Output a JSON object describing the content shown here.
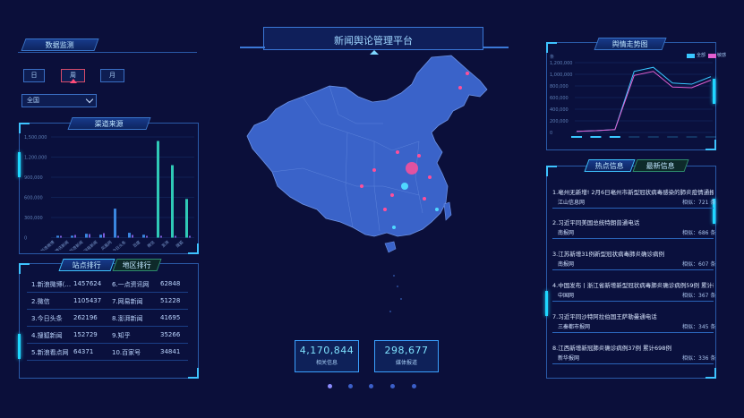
{
  "header": {
    "title": "新闻舆论管理平台"
  },
  "left": {
    "monitor_title": "数据监测",
    "period_buttons": [
      "日",
      "周",
      "月"
    ],
    "region_select": "全国",
    "source_title": "渠道来源",
    "source_chart": {
      "yticks": [
        "1,500,000",
        "1,200,000",
        "900,000",
        "600,000",
        "300,000",
        "0"
      ],
      "categories": [
        "新浪微博",
        "腾讯新闻",
        "新浪新闻",
        "网易新闻",
        "凤凰网",
        "今日头条",
        "百度",
        "微信",
        "澎湃",
        "搜狐"
      ]
    },
    "rank_tabs": [
      "站点排行",
      "地区排行"
    ],
    "rank_rows": [
      {
        "l": "1.新浪微博(...",
        "lv": "1457624",
        "r": "6.一点资讯网",
        "rv": "62848"
      },
      {
        "l": "2.微信",
        "lv": "1105437",
        "r": "7.网易新闻",
        "rv": "51228"
      },
      {
        "l": "3.今日头条",
        "lv": "262196",
        "r": "8.澎湃新闻",
        "rv": "41695"
      },
      {
        "l": "4.搜狐新闻",
        "lv": "152729",
        "r": "9.知乎",
        "rv": "35266"
      },
      {
        "l": "5.新浪看点网",
        "lv": "64371",
        "r": "10.百家号",
        "rv": "34841"
      }
    ]
  },
  "center": {
    "stats": [
      {
        "value": "4,170,844",
        "label": "相关信息"
      },
      {
        "value": "298,677",
        "label": "媒体报道"
      }
    ]
  },
  "right": {
    "trend_title": "舆情走势图",
    "legend": [
      "全部",
      "敏感"
    ],
    "trend_yticks": [
      "1,200,000",
      "1,000,000",
      "800,000",
      "600,000",
      "400,000",
      "200,000",
      "0"
    ],
    "trend_unit": "条",
    "trend_chart": {
      "type": "line",
      "series": [
        {
          "name": "全部",
          "values": [
            20000,
            30000,
            50000,
            1050000,
            1120000,
            850000,
            830000,
            960000
          ]
        },
        {
          "name": "敏感",
          "values": [
            20000,
            30000,
            50000,
            980000,
            1050000,
            780000,
            770000,
            900000
          ]
        }
      ]
    },
    "news_tabs": [
      "热点信息",
      "最新信息"
    ],
    "news": [
      {
        "t": "1.亳州无新增! 2月6日亳州市新型冠状病毒感染的肺炎疫情通报",
        "s": "江山信息网",
        "h": "相似：721 条"
      },
      {
        "t": "2.习近平同美国总统特朗普通电话",
        "s": "南报网",
        "h": "相似：686 条"
      },
      {
        "t": "3.江苏新增31例新型冠状病毒肺炎确诊病例",
        "s": "南报网",
        "h": "相似：607 条"
      },
      {
        "t": "4.中国发布丨浙江省新增新型冠状病毒肺炎确诊病例59例 累计确...",
        "s": "中国网",
        "h": "相似：367 条"
      },
      {
        "t": "7.习近平同沙特阿拉伯国王萨勒曼通电话",
        "s": "三秦都市报网",
        "h": "相似：345 条"
      },
      {
        "t": "8.江西新增新冠肺炎确诊病例37例 累计698例",
        "s": "新华报网",
        "h": "相似：336 条"
      }
    ]
  }
}
